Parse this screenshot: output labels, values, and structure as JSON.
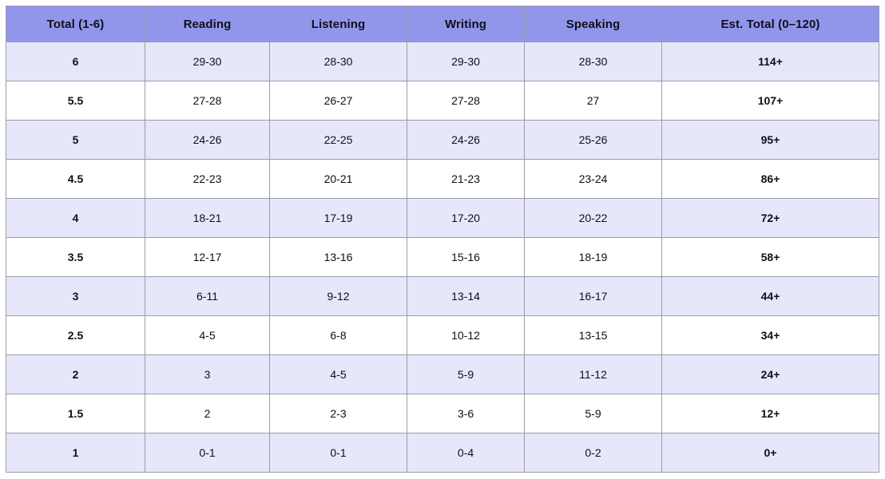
{
  "chart_data": {
    "type": "table",
    "columns": [
      "Total (1-6)",
      "Reading",
      "Listening",
      "Writing",
      "Speaking",
      "Est. Total (0–120)"
    ],
    "rows": [
      [
        "6",
        "29-30",
        "28-30",
        "29-30",
        "28-30",
        "114+"
      ],
      [
        "5.5",
        "27-28",
        "26-27",
        "27-28",
        "27",
        "107+"
      ],
      [
        "5",
        "24-26",
        "22-25",
        "24-26",
        "25-26",
        "95+"
      ],
      [
        "4.5",
        "22-23",
        "20-21",
        "21-23",
        "23-24",
        "86+"
      ],
      [
        "4",
        "18-21",
        "17-19",
        "17-20",
        "20-22",
        "72+"
      ],
      [
        "3.5",
        "12-17",
        "13-16",
        "15-16",
        "18-19",
        "58+"
      ],
      [
        "3",
        "6-11",
        "9-12",
        "13-14",
        "16-17",
        "44+"
      ],
      [
        "2.5",
        "4-5",
        "6-8",
        "10-12",
        "13-15",
        "34+"
      ],
      [
        "2",
        "3",
        "4-5",
        "5-9",
        "11-12",
        "24+"
      ],
      [
        "1.5",
        "2",
        "2-3",
        "3-6",
        "5-9",
        "12+"
      ],
      [
        "1",
        "0-1",
        "0-1",
        "0-4",
        "0-2",
        "0+"
      ]
    ],
    "layout": {
      "grid": true,
      "header_row": true,
      "striped_rows": true,
      "bold_columns": [
        0,
        5
      ]
    }
  },
  "colors": {
    "header_bg": "#9296ea",
    "row_alt_bg": "#e6e7fa",
    "row_bg": "#ffffff",
    "border": "#9b9ba8",
    "text": "#0f0f1c"
  }
}
